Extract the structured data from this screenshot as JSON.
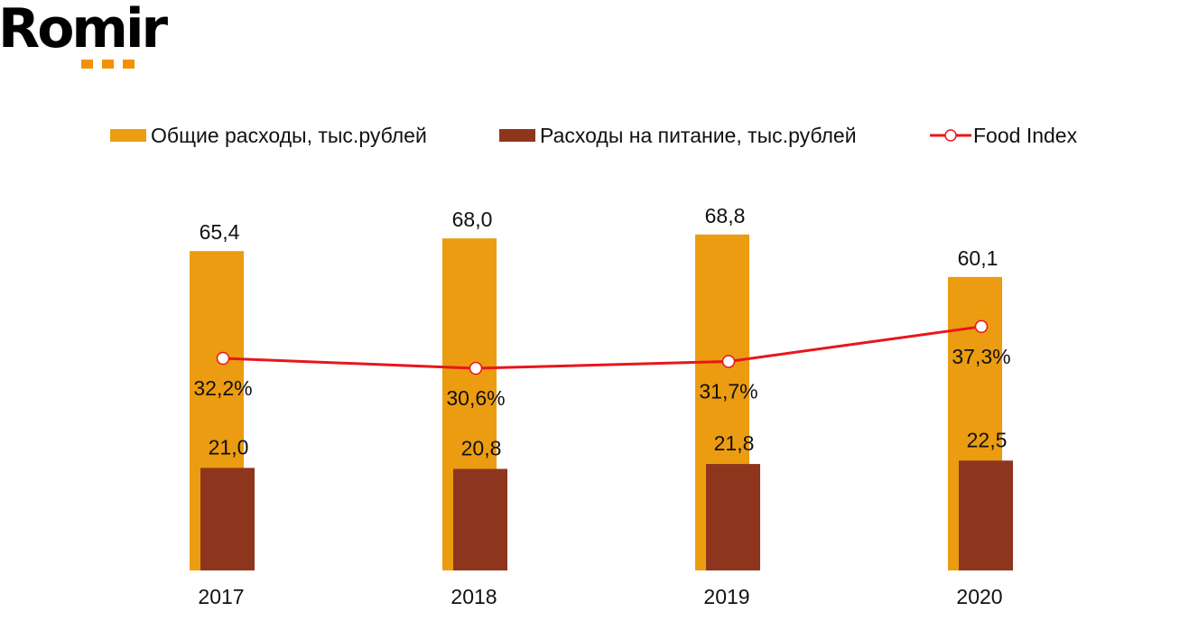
{
  "logo": {
    "text": "Romir",
    "accent_color": "#f39200"
  },
  "legend": {
    "total_label": "Общие расходы, тыс.рублей",
    "food_label": "Расходы на питание, тыс.рублей",
    "index_label": "Food Index"
  },
  "colors": {
    "total": "#ec9c11",
    "food": "#8e351e",
    "index_line": "#e8161b"
  },
  "chart_data": {
    "type": "bar",
    "categories": [
      "2017",
      "2018",
      "2019",
      "2020"
    ],
    "series": [
      {
        "name": "Общие расходы, тыс.рублей",
        "kind": "bar",
        "values": [
          65.4,
          68.0,
          68.8,
          60.1
        ],
        "labels": [
          "65,4",
          "68,0",
          "68,8",
          "60,1"
        ]
      },
      {
        "name": "Расходы на питание, тыс.рублей",
        "kind": "bar",
        "values": [
          21.0,
          20.8,
          21.8,
          22.5
        ],
        "labels": [
          "21,0",
          "20,8",
          "21,8",
          "22,5"
        ]
      },
      {
        "name": "Food Index",
        "kind": "line",
        "values": [
          32.2,
          30.6,
          31.7,
          37.3
        ],
        "labels": [
          "32,2%",
          "30,6%",
          "31,7%",
          "37,3%"
        ],
        "unit": "%"
      }
    ],
    "title": "",
    "xlabel": "",
    "ylabel": "",
    "legend_position": "top",
    "grid": false
  }
}
